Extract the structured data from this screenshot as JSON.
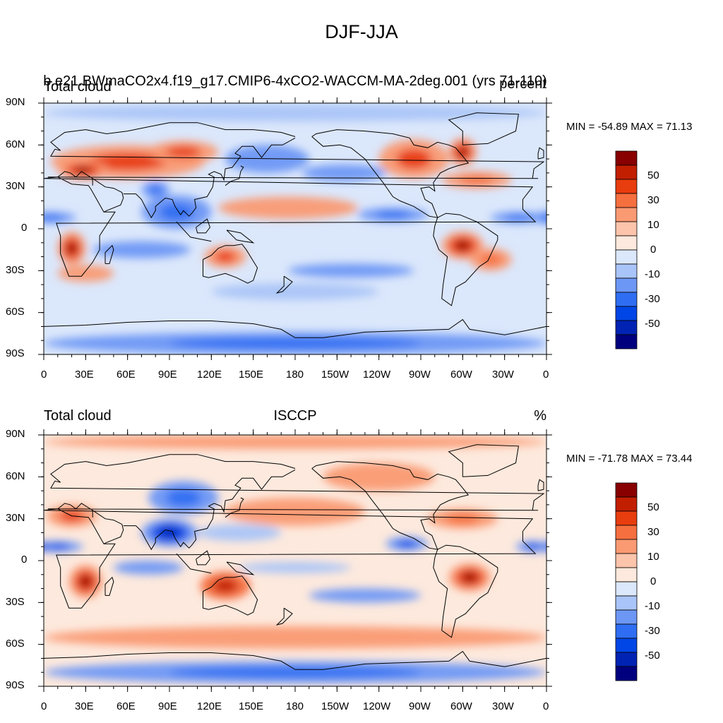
{
  "figure": {
    "title": "DJF-JJA",
    "palette": [
      "#00007f",
      "#0023b3",
      "#0046e6",
      "#2f6ef2",
      "#6d97f5",
      "#a9c4f8",
      "#dbe7fb",
      "#fde9dd",
      "#fcc4ab",
      "#fa9a73",
      "#f66f3f",
      "#e83d0e",
      "#c21f00",
      "#880000"
    ]
  },
  "panels": [
    {
      "id": "model",
      "left_title": "Total cloud",
      "center_title": "b.e21.BWmaCO2x4.f19_g17.CMIP6-4xCO2-WACCM-MA-2deg.001 (yrs 71-110)",
      "right_title": "percent",
      "minmax": "MIN = -54.89 MAX =  71.13"
    },
    {
      "id": "isccp",
      "left_title": "Total cloud",
      "center_title": "ISCCP",
      "right_title": "%",
      "minmax": "MIN = -71.78 MAX =  73.44"
    }
  ],
  "axes": {
    "lat_labels": [
      "90N",
      "60N",
      "30N",
      "0",
      "30S",
      "60S",
      "90S"
    ],
    "lon_labels": [
      "0",
      "30E",
      "60E",
      "90E",
      "120E",
      "150E",
      "180",
      "150W",
      "120W",
      "90W",
      "60W",
      "30W",
      "0"
    ]
  },
  "colorbar": {
    "labels": [
      "50",
      "30",
      "10",
      "0",
      "-10",
      "-30",
      "-50"
    ]
  },
  "chart_data": [
    {
      "type": "heatmap",
      "title": "b.e21.BWmaCO2x4.f19_g17.CMIP6-4xCO2-WACCM-MA-2deg.001 (yrs 71-110)",
      "variable": "Total cloud",
      "units": "percent",
      "season_difference": "DJF-JJA",
      "x_range": [
        0,
        360
      ],
      "y_range": [
        -90,
        90
      ],
      "min": -54.89,
      "max": 71.13,
      "contour_levels": [
        -60,
        -50,
        -40,
        -30,
        -20,
        -10,
        -5,
        0,
        5,
        10,
        20,
        30,
        40,
        50,
        60
      ],
      "blobs": [
        {
          "lon": 60,
          "lat": 48,
          "value": 35,
          "rlon": 55,
          "rlat": 12
        },
        {
          "lon": 28,
          "lat": 42,
          "value": 55,
          "rlon": 18,
          "rlat": 7
        },
        {
          "lon": 100,
          "lat": 55,
          "value": 30,
          "rlon": 25,
          "rlat": 8
        },
        {
          "lon": 20,
          "lat": -14,
          "value": 50,
          "rlon": 10,
          "rlat": 12
        },
        {
          "lon": 300,
          "lat": -12,
          "value": 55,
          "rlon": 15,
          "rlat": 10
        },
        {
          "lon": 320,
          "lat": -22,
          "value": 25,
          "rlon": 15,
          "rlat": 8
        },
        {
          "lon": 130,
          "lat": -20,
          "value": 30,
          "rlon": 15,
          "rlat": 8
        },
        {
          "lon": 30,
          "lat": -32,
          "value": 15,
          "rlon": 20,
          "rlat": 6
        },
        {
          "lon": 265,
          "lat": 50,
          "value": 30,
          "rlon": 25,
          "rlat": 14
        },
        {
          "lon": 300,
          "lat": 55,
          "value": 55,
          "rlon": 10,
          "rlat": 10
        },
        {
          "lon": 310,
          "lat": 35,
          "value": 25,
          "rlon": 25,
          "rlat": 6
        },
        {
          "lon": 175,
          "lat": 15,
          "value": 10,
          "rlon": 50,
          "rlat": 8
        },
        {
          "lon": 95,
          "lat": 12,
          "value": -30,
          "rlon": 25,
          "rlat": 12
        },
        {
          "lon": 80,
          "lat": 28,
          "value": -25,
          "rlon": 10,
          "rlat": 6
        },
        {
          "lon": 5,
          "lat": 8,
          "value": -30,
          "rlon": 18,
          "rlat": 4
        },
        {
          "lon": 340,
          "lat": 8,
          "value": -30,
          "rlon": 20,
          "rlat": 4
        },
        {
          "lon": 250,
          "lat": 10,
          "value": -25,
          "rlon": 25,
          "rlat": 5
        },
        {
          "lon": 215,
          "lat": 40,
          "value": -20,
          "rlon": 30,
          "rlat": 6
        },
        {
          "lon": 160,
          "lat": 50,
          "value": -15,
          "rlon": 30,
          "rlat": 10
        },
        {
          "lon": 220,
          "lat": -30,
          "value": -20,
          "rlon": 45,
          "rlat": 5
        },
        {
          "lon": 70,
          "lat": -15,
          "value": -15,
          "rlon": 35,
          "rlat": 6
        },
        {
          "lon": 180,
          "lat": -45,
          "value": -10,
          "rlon": 60,
          "rlat": 6
        },
        {
          "lon": 180,
          "lat": -82,
          "value": -25,
          "rlon": 180,
          "rlat": 8
        },
        {
          "lon": 180,
          "lat": 83,
          "value": -10,
          "rlon": 180,
          "rlat": 6
        }
      ]
    },
    {
      "type": "heatmap",
      "title": "ISCCP",
      "variable": "Total cloud",
      "units": "%",
      "season_difference": "DJF-JJA",
      "x_range": [
        0,
        360
      ],
      "y_range": [
        -90,
        90
      ],
      "min": -71.78,
      "max": 73.44,
      "contour_levels": [
        -60,
        -50,
        -40,
        -30,
        -20,
        -10,
        -5,
        0,
        5,
        10,
        20,
        30,
        40,
        50,
        60
      ],
      "blobs": [
        {
          "lon": 30,
          "lat": -15,
          "value": 55,
          "rlon": 12,
          "rlat": 12
        },
        {
          "lon": 305,
          "lat": -12,
          "value": 50,
          "rlon": 15,
          "rlat": 10
        },
        {
          "lon": 130,
          "lat": -18,
          "value": 40,
          "rlon": 18,
          "rlat": 10
        },
        {
          "lon": 20,
          "lat": 32,
          "value": 30,
          "rlon": 18,
          "rlat": 8
        },
        {
          "lon": 300,
          "lat": 30,
          "value": 25,
          "rlon": 25,
          "rlat": 7
        },
        {
          "lon": 180,
          "lat": 35,
          "value": 15,
          "rlon": 50,
          "rlat": 10
        },
        {
          "lon": 240,
          "lat": 60,
          "value": 15,
          "rlon": 40,
          "rlat": 10
        },
        {
          "lon": 180,
          "lat": -55,
          "value": 15,
          "rlon": 180,
          "rlat": 8
        },
        {
          "lon": 180,
          "lat": 85,
          "value": 15,
          "rlon": 180,
          "rlat": 5
        },
        {
          "lon": 90,
          "lat": 20,
          "value": -50,
          "rlon": 20,
          "rlat": 10
        },
        {
          "lon": 10,
          "lat": 10,
          "value": -40,
          "rlon": 18,
          "rlat": 4
        },
        {
          "lon": 350,
          "lat": 10,
          "value": -35,
          "rlon": 12,
          "rlat": 4
        },
        {
          "lon": 260,
          "lat": 12,
          "value": -35,
          "rlon": 15,
          "rlat": 5
        },
        {
          "lon": 100,
          "lat": 45,
          "value": -25,
          "rlon": 25,
          "rlat": 12
        },
        {
          "lon": 140,
          "lat": 20,
          "value": -10,
          "rlon": 30,
          "rlat": 6
        },
        {
          "lon": 230,
          "lat": -25,
          "value": -15,
          "rlon": 40,
          "rlat": 5
        },
        {
          "lon": 75,
          "lat": -5,
          "value": -15,
          "rlon": 25,
          "rlat": 5
        },
        {
          "lon": 180,
          "lat": -80,
          "value": -30,
          "rlon": 180,
          "rlat": 8
        },
        {
          "lon": 180,
          "lat": -5,
          "value": -8,
          "rlon": 40,
          "rlat": 4
        }
      ]
    }
  ]
}
